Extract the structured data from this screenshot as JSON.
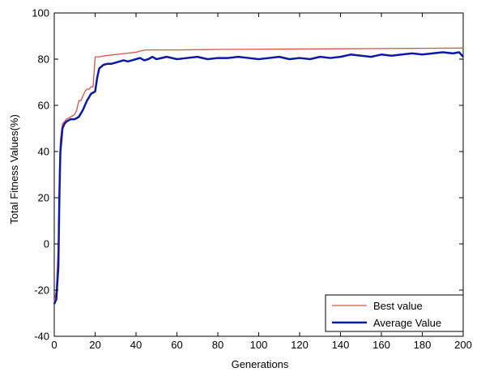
{
  "chart_data": {
    "type": "line",
    "xlabel": "Generations",
    "ylabel": "Total Fitness Values(%)",
    "xlim": [
      0,
      200
    ],
    "ylim": [
      -40,
      100
    ],
    "x_ticks": [
      0,
      20,
      40,
      60,
      80,
      100,
      120,
      140,
      160,
      180,
      200
    ],
    "y_ticks": [
      -40,
      -20,
      0,
      20,
      40,
      60,
      80,
      100
    ],
    "grid": false,
    "legend_position": "bottom-right",
    "series": [
      {
        "name": "Best value",
        "color": "#d9534f",
        "x": [
          0,
          1,
          2,
          2.5,
          3,
          4,
          5,
          6,
          8,
          10,
          11,
          12,
          13,
          14,
          15,
          16,
          17,
          18,
          19,
          20,
          22,
          25,
          30,
          35,
          40,
          42,
          45,
          60,
          80,
          100,
          120,
          140,
          160,
          180,
          200
        ],
        "y": [
          -25,
          -20,
          0,
          30,
          45,
          52,
          53,
          54,
          55,
          56,
          58,
          62,
          62,
          64,
          66,
          67,
          67,
          68,
          68,
          81,
          81,
          81.5,
          82,
          82.5,
          83,
          83.5,
          84,
          84,
          84.2,
          84.3,
          84.4,
          84.5,
          84.6,
          84.7,
          84.8
        ]
      },
      {
        "name": "Average Value",
        "color": "#0a1aa6",
        "x": [
          0,
          1,
          2,
          2.5,
          3,
          4,
          5,
          6,
          8,
          10,
          12,
          14,
          16,
          18,
          20,
          21,
          22,
          24,
          26,
          28,
          30,
          32,
          34,
          36,
          38,
          40,
          42,
          44,
          46,
          48,
          50,
          55,
          60,
          65,
          70,
          75,
          80,
          85,
          90,
          95,
          100,
          105,
          110,
          115,
          120,
          125,
          130,
          135,
          140,
          145,
          150,
          155,
          160,
          165,
          170,
          175,
          180,
          185,
          190,
          195,
          198,
          200
        ],
        "y": [
          -26,
          -24,
          -10,
          20,
          40,
          50,
          52,
          53,
          54,
          54,
          55,
          58,
          62,
          65,
          66,
          72,
          76,
          77.5,
          78,
          78,
          78.5,
          79,
          79.5,
          79,
          79.5,
          80,
          80.5,
          79.5,
          80,
          81,
          80,
          81,
          80,
          80.5,
          81,
          80,
          80.5,
          80.5,
          81,
          80.5,
          80,
          80.5,
          81,
          80,
          80.5,
          80,
          81,
          80.5,
          81,
          82,
          81.5,
          81,
          82,
          81.5,
          82,
          82.5,
          82,
          82.5,
          83,
          82.5,
          83,
          81
        ]
      }
    ]
  }
}
